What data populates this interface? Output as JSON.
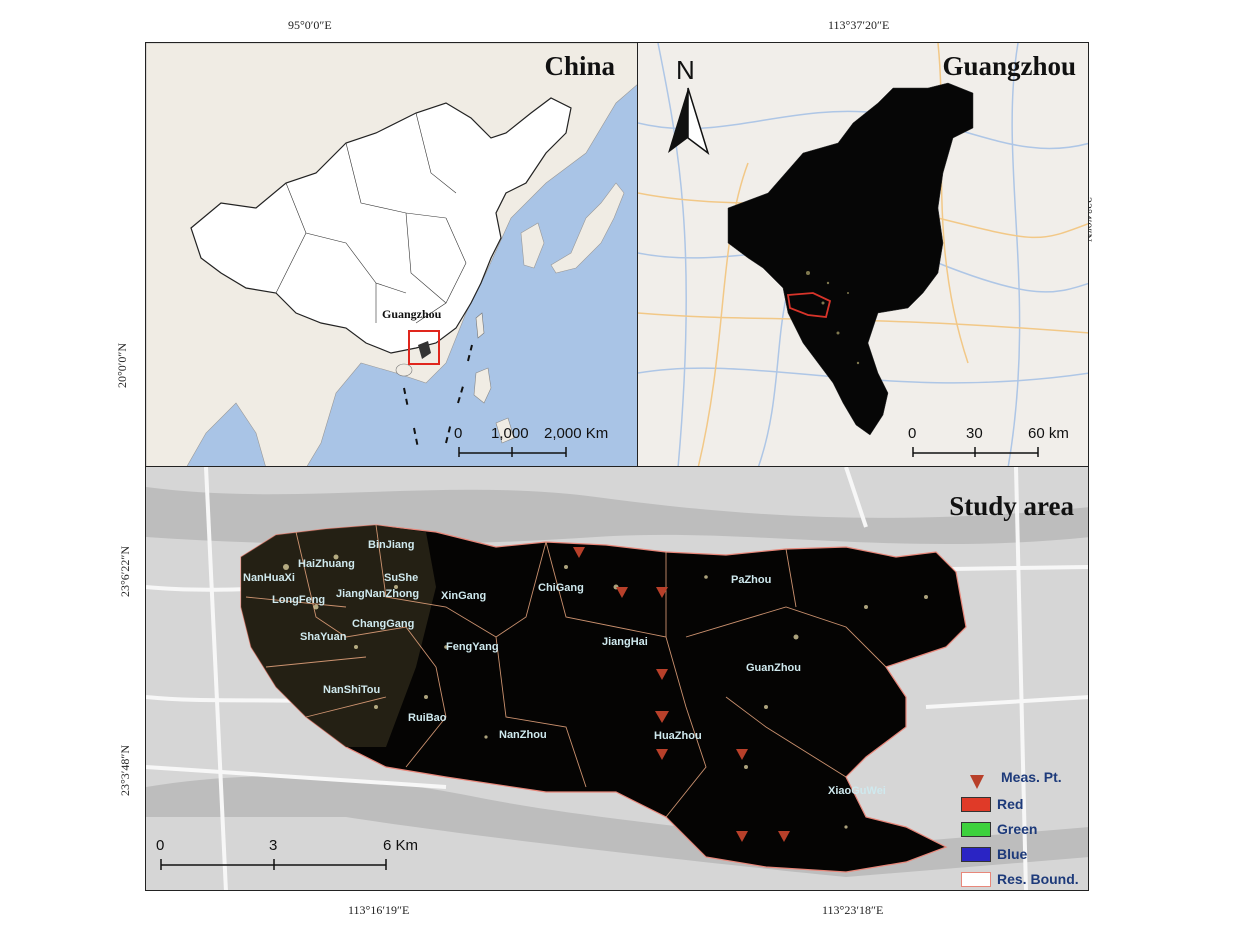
{
  "coords": {
    "top_left": "95°0′0″E",
    "top_right": "113°37′20″E",
    "left_china": "20°0′0″N",
    "right_gz": "23°4′0″N",
    "left_study_top": "23°6′22″N",
    "left_study_bottom": "23°3′48″N",
    "bottom_left": "113°16′19″E",
    "bottom_right": "113°23′18″E"
  },
  "china_panel": {
    "title": "China",
    "label": "Guangzhou",
    "scale": [
      "0",
      "1,000",
      "2,000 Km"
    ]
  },
  "gz_panel": {
    "title": "Guangzhou",
    "north": "N",
    "scale": [
      "0",
      "30",
      "60 km"
    ]
  },
  "study_panel": {
    "title": "Study area",
    "scale": [
      "0",
      "3",
      "6 Km"
    ],
    "areas": [
      "HaiZhuang",
      "BinJiang",
      "NanHuaXi",
      "SuShe",
      "LongFeng",
      "JiangNanZhong",
      "XinGang",
      "ChiGang",
      "PaZhou",
      "ChangGang",
      "ShaYuan",
      "FengYang",
      "JiangHai",
      "GuanZhou",
      "NanShiTou",
      "RuiBao",
      "NanZhou",
      "HuaZhou",
      "XiaoGuWei"
    ]
  },
  "legend": {
    "meas": "Meas. Pt.",
    "red": "Red",
    "green": "Green",
    "blue": "Blue",
    "bound": "Res. Bound.",
    "colors": {
      "red": "#e03a28",
      "green": "#3dd13d",
      "blue": "#2a24c4",
      "bound": "#e8877a",
      "marker": "#b8402a"
    }
  }
}
